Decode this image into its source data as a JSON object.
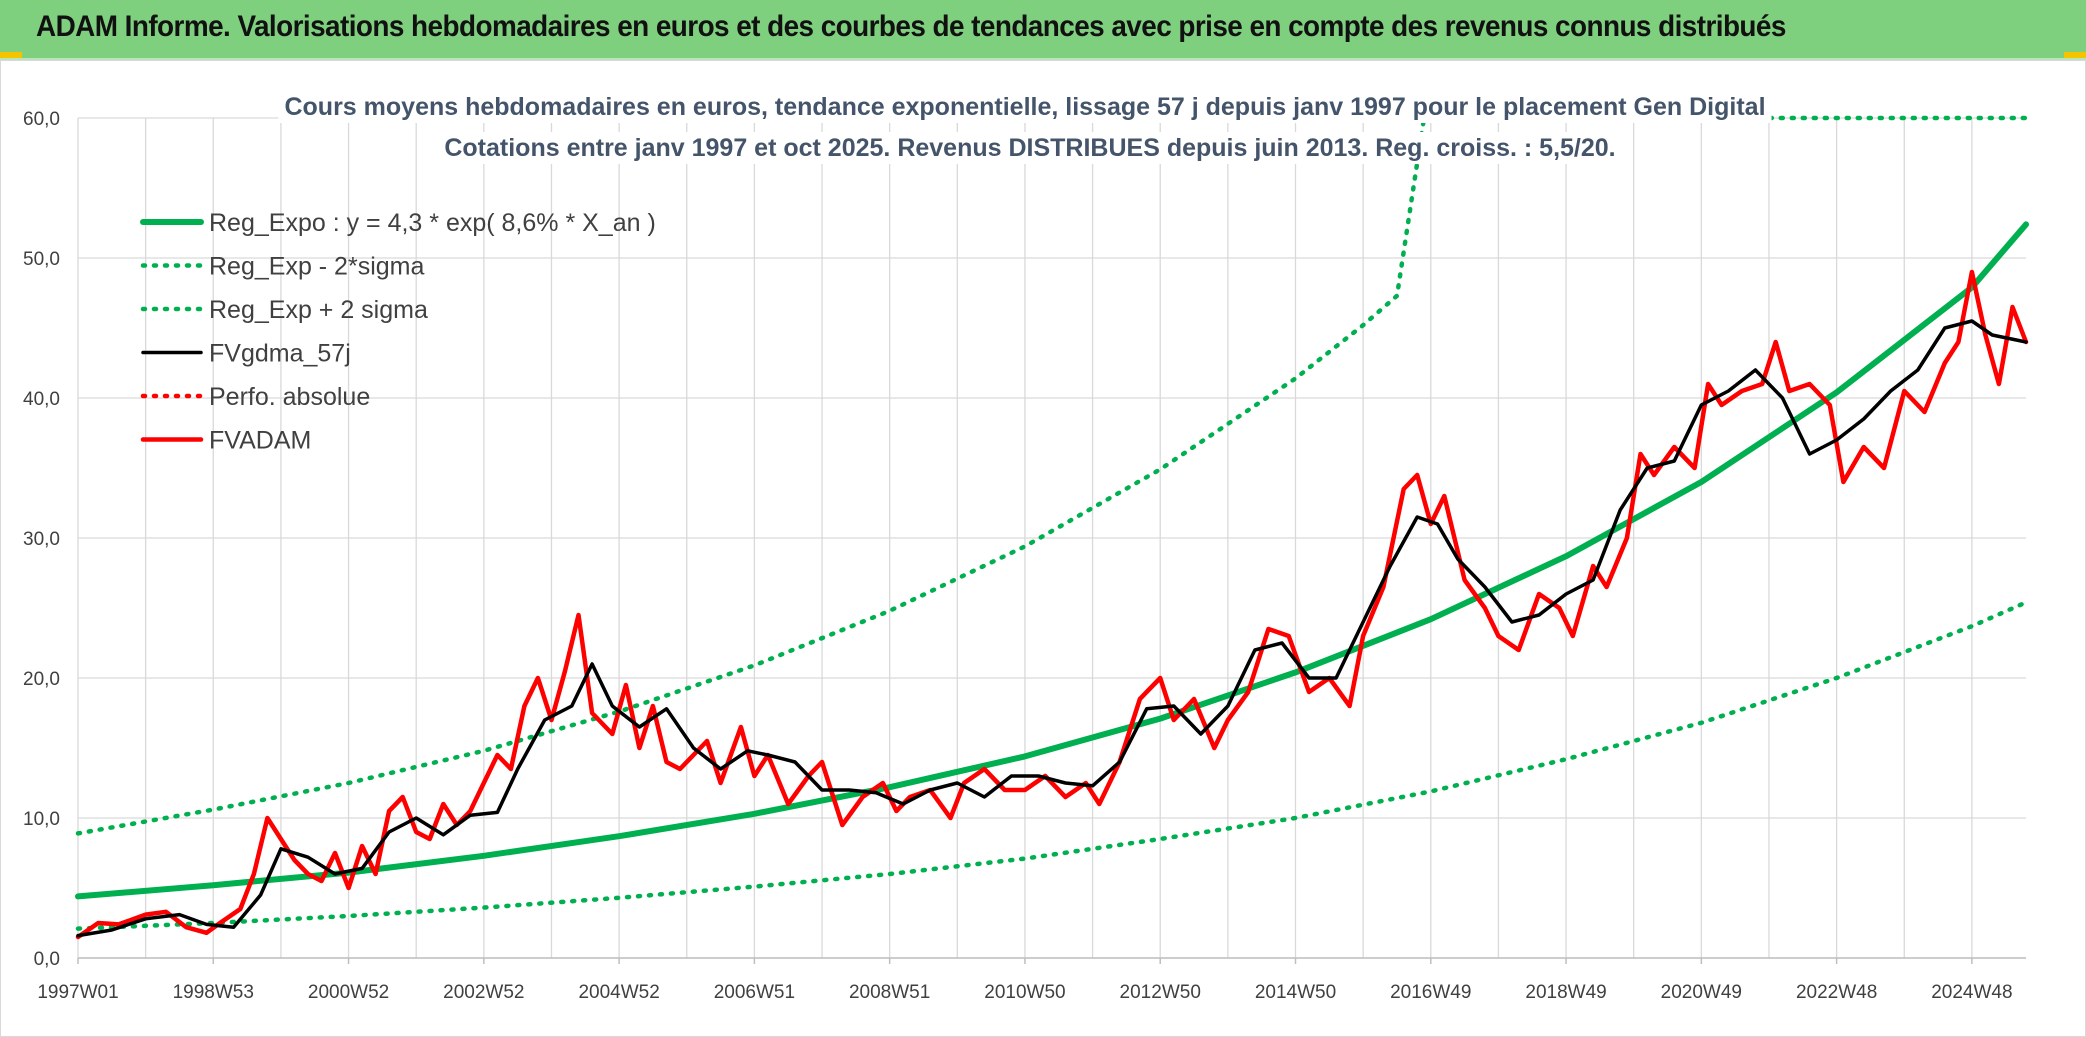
{
  "banner": {
    "title": "ADAM Informe. Valorisations hebdomadaires en euros et des courbes de tendances avec prise en compte des revenus connus distribués"
  },
  "colors": {
    "banner_bg": "#7ecf7e",
    "green": "#00b050",
    "black": "#000000",
    "red": "#ff0000",
    "title_text": "#44546a",
    "grid": "#d9d9d9",
    "corner": "#f5c400"
  },
  "chart_data": {
    "type": "line",
    "title": "Cours moyens hebdomadaires en euros, tendance exponentielle, lissage 57 j depuis janv 1997 pour le placement Gen Digital",
    "subtitle": "Cotations entre janv 1997 et oct 2025. Revenus DISTRIBUES depuis juin 2013. Reg. croiss. : 5,5/20.",
    "xlabel": "",
    "ylabel": "",
    "ylim": [
      0,
      60
    ],
    "xlim": [
      1997.0,
      2025.8
    ],
    "y_ticks": [
      "0,0",
      "10,0",
      "20,0",
      "30,0",
      "40,0",
      "50,0",
      "60,0"
    ],
    "x_ticks": [
      {
        "label": "1997W01",
        "t": 1997.0
      },
      {
        "label": "1998W53",
        "t": 1999.0
      },
      {
        "label": "2000W52",
        "t": 2001.0
      },
      {
        "label": "2002W52",
        "t": 2003.0
      },
      {
        "label": "2004W52",
        "t": 2005.0
      },
      {
        "label": "2006W51",
        "t": 2007.0
      },
      {
        "label": "2008W51",
        "t": 2009.0
      },
      {
        "label": "2010W50",
        "t": 2011.0
      },
      {
        "label": "2012W50",
        "t": 2013.0
      },
      {
        "label": "2014W50",
        "t": 2015.0
      },
      {
        "label": "2016W49",
        "t": 2017.0
      },
      {
        "label": "2018W49",
        "t": 2019.0
      },
      {
        "label": "2020W49",
        "t": 2021.0
      },
      {
        "label": "2022W48",
        "t": 2023.0
      },
      {
        "label": "2024W48",
        "t": 2025.0
      }
    ],
    "grid": true,
    "legend_position": "top-left",
    "series": [
      {
        "name": "Reg_Expo : y = 4,3 * exp( 8,6% *  X_an )",
        "style": "solid-thick",
        "color": "#00b050",
        "x": [
          1997.0,
          1999.0,
          2001.0,
          2003.0,
          2005.0,
          2007.0,
          2009.0,
          2011.0,
          2013.0,
          2015.0,
          2017.0,
          2019.0,
          2021.0,
          2023.0,
          2025.0,
          2025.8
        ],
        "y": [
          4.4,
          5.2,
          6.1,
          7.3,
          8.7,
          10.3,
          12.2,
          14.4,
          17.1,
          20.4,
          24.2,
          28.7,
          34.0,
          40.4,
          47.9,
          52.4
        ]
      },
      {
        "name": "Reg_Exp - 2*sigma",
        "style": "dotted",
        "color": "#00b050",
        "x": [
          1997.0,
          1999.0,
          2001.0,
          2003.0,
          2005.0,
          2007.0,
          2009.0,
          2011.0,
          2013.0,
          2015.0,
          2017.0,
          2019.0,
          2021.0,
          2023.0,
          2025.0,
          2025.8
        ],
        "y": [
          2.1,
          2.5,
          3.0,
          3.6,
          4.3,
          5.1,
          6.0,
          7.1,
          8.5,
          10.0,
          11.9,
          14.2,
          16.8,
          20.0,
          23.7,
          25.4
        ]
      },
      {
        "name": "Reg_Exp + 2 sigma",
        "style": "dotted",
        "color": "#00b050",
        "x": [
          1997.0,
          1999.0,
          2001.0,
          2003.0,
          2005.0,
          2007.0,
          2009.0,
          2011.0,
          2013.0,
          2015.0,
          2016.0,
          2016.5,
          2016.9,
          2023.7,
          2025.8
        ],
        "y": [
          8.9,
          10.6,
          12.5,
          14.8,
          17.6,
          20.9,
          24.8,
          29.4,
          34.9,
          41.4,
          45.2,
          47.3,
          60.0,
          60.0,
          60.0
        ]
      },
      {
        "name": "FVgdma_57j",
        "style": "solid",
        "color": "#000000",
        "x": [
          1997.0,
          1997.5,
          1998.0,
          1998.5,
          1998.9,
          1999.3,
          1999.7,
          2000.0,
          2000.4,
          2000.8,
          2001.2,
          2001.6,
          2002.0,
          2002.4,
          2002.8,
          2003.2,
          2003.5,
          2003.9,
          2004.3,
          2004.6,
          2004.9,
          2005.3,
          2005.7,
          2006.1,
          2006.5,
          2006.9,
          2007.2,
          2007.6,
          2008.0,
          2008.4,
          2008.8,
          2009.2,
          2009.6,
          2010.0,
          2010.4,
          2010.8,
          2011.2,
          2011.6,
          2012.0,
          2012.4,
          2012.8,
          2013.2,
          2013.6,
          2014.0,
          2014.4,
          2014.8,
          2015.2,
          2015.6,
          2016.0,
          2016.4,
          2016.8,
          2017.1,
          2017.4,
          2017.8,
          2018.2,
          2018.6,
          2019.0,
          2019.4,
          2019.8,
          2020.2,
          2020.6,
          2021.0,
          2021.4,
          2021.8,
          2022.2,
          2022.6,
          2023.0,
          2023.4,
          2023.8,
          2024.2,
          2024.6,
          2025.0,
          2025.3,
          2025.8
        ],
        "y": [
          1.6,
          2.0,
          2.8,
          3.1,
          2.4,
          2.2,
          4.5,
          7.8,
          7.2,
          6.0,
          6.4,
          9.0,
          10.0,
          8.8,
          10.2,
          10.4,
          13.5,
          17.0,
          18.0,
          21.0,
          18.0,
          16.5,
          17.8,
          15.0,
          13.5,
          14.8,
          14.5,
          14.0,
          12.0,
          12.0,
          11.8,
          11.0,
          12.0,
          12.5,
          11.5,
          13.0,
          13.0,
          12.5,
          12.3,
          14.0,
          17.8,
          18.0,
          16.0,
          18.0,
          22.0,
          22.5,
          20.0,
          20.0,
          24.0,
          28.0,
          31.5,
          31.0,
          28.5,
          26.5,
          24.0,
          24.5,
          26.0,
          27.0,
          32.0,
          35.0,
          35.5,
          39.5,
          40.5,
          42.0,
          40.0,
          36.0,
          37.0,
          38.5,
          40.5,
          42.0,
          45.0,
          45.5,
          44.5,
          44.0
        ]
      },
      {
        "name": "Perfo. absolue",
        "style": "dotted",
        "color": "#ff0000",
        "x": [],
        "y": []
      },
      {
        "name": "FVADAM",
        "style": "solid-thick",
        "color": "#ff0000",
        "x": [
          1997.0,
          1997.3,
          1997.6,
          1998.0,
          1998.3,
          1998.6,
          1998.9,
          1999.1,
          1999.4,
          1999.6,
          1999.8,
          2000.0,
          2000.2,
          2000.4,
          2000.6,
          2000.8,
          2001.0,
          2001.2,
          2001.4,
          2001.6,
          2001.8,
          2002.0,
          2002.2,
          2002.4,
          2002.6,
          2002.8,
          2003.0,
          2003.2,
          2003.4,
          2003.6,
          2003.8,
          2004.0,
          2004.2,
          2004.4,
          2004.6,
          2004.9,
          2005.1,
          2005.3,
          2005.5,
          2005.7,
          2005.9,
          2006.1,
          2006.3,
          2006.5,
          2006.8,
          2007.0,
          2007.2,
          2007.5,
          2007.8,
          2008.0,
          2008.3,
          2008.6,
          2008.9,
          2009.1,
          2009.3,
          2009.6,
          2009.9,
          2010.1,
          2010.4,
          2010.7,
          2011.0,
          2011.3,
          2011.6,
          2011.9,
          2012.1,
          2012.4,
          2012.7,
          2013.0,
          2013.2,
          2013.5,
          2013.8,
          2014.0,
          2014.3,
          2014.6,
          2014.9,
          2015.2,
          2015.5,
          2015.8,
          2016.0,
          2016.3,
          2016.6,
          2016.8,
          2017.0,
          2017.2,
          2017.5,
          2017.8,
          2018.0,
          2018.3,
          2018.6,
          2018.9,
          2019.1,
          2019.4,
          2019.6,
          2019.9,
          2020.1,
          2020.3,
          2020.6,
          2020.9,
          2021.1,
          2021.3,
          2021.6,
          2021.9,
          2022.1,
          2022.3,
          2022.6,
          2022.9,
          2023.1,
          2023.4,
          2023.7,
          2024.0,
          2024.3,
          2024.6,
          2024.8,
          2025.0,
          2025.2,
          2025.4,
          2025.6,
          2025.8
        ],
        "y": [
          1.5,
          2.5,
          2.4,
          3.1,
          3.3,
          2.2,
          1.8,
          2.5,
          3.5,
          6.0,
          10.0,
          8.5,
          7.0,
          6.0,
          5.5,
          7.5,
          5.0,
          8.0,
          6.0,
          10.5,
          11.5,
          9.0,
          8.5,
          11.0,
          9.5,
          10.5,
          12.5,
          14.5,
          13.5,
          18.0,
          20.0,
          17.0,
          20.5,
          24.5,
          17.5,
          16.0,
          19.5,
          15.0,
          18.0,
          14.0,
          13.5,
          14.5,
          15.5,
          12.5,
          16.5,
          13.0,
          14.5,
          11.0,
          13.0,
          14.0,
          9.5,
          11.5,
          12.5,
          10.5,
          11.5,
          12.0,
          10.0,
          12.5,
          13.5,
          12.0,
          12.0,
          13.0,
          11.5,
          12.5,
          11.0,
          14.0,
          18.5,
          20.0,
          17.0,
          18.5,
          15.0,
          17.0,
          19.0,
          23.5,
          23.0,
          19.0,
          20.0,
          18.0,
          23.0,
          26.5,
          33.5,
          34.5,
          31.0,
          33.0,
          27.0,
          25.0,
          23.0,
          22.0,
          26.0,
          25.0,
          23.0,
          28.0,
          26.5,
          30.0,
          36.0,
          34.5,
          36.5,
          35.0,
          41.0,
          39.5,
          40.5,
          41.0,
          44.0,
          40.5,
          41.0,
          39.5,
          34.0,
          36.5,
          35.0,
          40.5,
          39.0,
          42.5,
          44.0,
          49.0,
          44.5,
          41.0,
          46.5,
          44.0
        ]
      }
    ]
  }
}
